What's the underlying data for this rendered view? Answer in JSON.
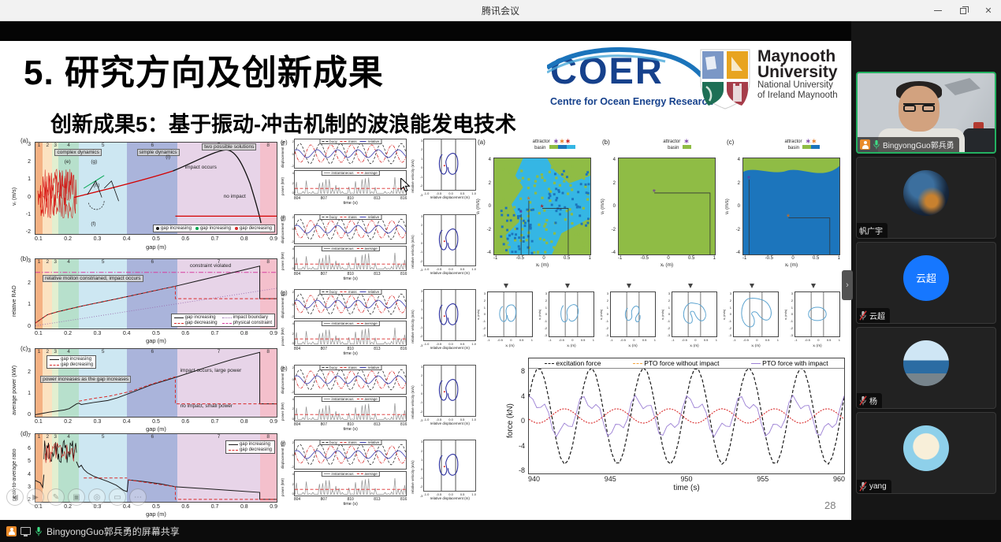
{
  "window": {
    "title": "腾讯会议"
  },
  "titlebar": {
    "close_glyph": "✕"
  },
  "slide": {
    "title": "5. 研究方向及创新成果",
    "subtitle": "创新成果5：基于振动-冲击机制的波浪能发电技术",
    "page_number": "28"
  },
  "logos": {
    "coer_text": "COER",
    "coer_tagline": "Centre for Ocean Energy Research",
    "mu_name1": "Maynooth",
    "mu_name2": "University",
    "mu_sub1": "National University",
    "mu_sub2": "of Ireland Maynooth"
  },
  "zones": {
    "items": [
      {
        "n": "1",
        "w": "3%",
        "c": "#f4b183"
      },
      {
        "n": "2",
        "w": "4%",
        "c": "#fbe2c1"
      },
      {
        "n": "3",
        "w": "2.5%",
        "c": "#e2efd0"
      },
      {
        "n": "4",
        "w": "8.5%",
        "c": "#b7e0cc"
      },
      {
        "n": "5",
        "w": "20%",
        "c": "#cde7f2"
      },
      {
        "n": "6",
        "w": "21%",
        "c": "#aab4db"
      },
      {
        "n": "7",
        "w": "34%",
        "c": "#e7d4e8"
      },
      {
        "n": "8",
        "w": "7%",
        "c": "#f4c0cc"
      }
    ]
  },
  "plot_a": {
    "label": "(a)",
    "ylabel": "vᵣ (m/s)",
    "yticks": [
      "3",
      "2",
      "1",
      "0",
      "-1",
      "-2"
    ],
    "xticks": [
      "0.1",
      "0.2",
      "0.3",
      "0.4",
      "0.5",
      "0.6",
      "0.7",
      "0.8",
      "0.9"
    ],
    "xlabel": "gap (m)",
    "box_complex": "complex dynamics",
    "box_simple": "simple dynamics",
    "box_two": "two possible solutions",
    "ann_e": "(e)",
    "ann_g": "(g)",
    "ann_h": "(h)",
    "ann_f": "(f)",
    "ann_i": "(i)",
    "ann_impact": "impact occurs",
    "ann_no_impact": "no impact",
    "legend": [
      {
        "label": "gap increasing",
        "style": "dot",
        "color": "#1a1a1a"
      },
      {
        "label": "gap increasing",
        "style": "dot",
        "color": "#00a650"
      },
      {
        "label": "gap decreasing",
        "style": "dot",
        "color": "#d92b2b"
      }
    ]
  },
  "plot_b": {
    "label": "(b)",
    "ylabel": "relative RAO",
    "yticks": [
      "3",
      "2",
      "1",
      "0"
    ],
    "xticks": [
      "0.1",
      "0.2",
      "0.3",
      "0.4",
      "0.5",
      "0.6",
      "0.7",
      "0.8",
      "0.9"
    ],
    "xlabel": "gap (m)",
    "ann_constraint": "constraint violated",
    "box_note": "relative moiton constrianed, impact occurs",
    "legend": [
      {
        "label": "gap increasing",
        "style": "solid",
        "color": "#1a1a1a"
      },
      {
        "label": "impact boundary",
        "style": "dotted",
        "color": "#9a6fb0"
      },
      {
        "label": "gap decreasing",
        "style": "dashed",
        "color": "#d92b2b"
      },
      {
        "label": "physical constraint",
        "style": "dashdot",
        "color": "#d63fa0"
      }
    ]
  },
  "plot_c": {
    "label": "(c)",
    "ylabel": "average power (kW)",
    "yticks": [
      "3",
      "2",
      "1",
      "0"
    ],
    "xticks": [
      "0.1",
      "0.2",
      "0.3",
      "0.4",
      "0.5",
      "0.6",
      "0.7",
      "0.8",
      "0.9"
    ],
    "xlabel": "gap (m)",
    "box_note": "power increases as the gap increases",
    "ann_large": "impact occurs, large power",
    "ann_small": "no impact, small power",
    "legend": [
      {
        "label": "gap increasing",
        "style": "solid",
        "color": "#1a1a1a"
      },
      {
        "label": "gap decreasing",
        "style": "dashed",
        "color": "#d92b2b"
      }
    ]
  },
  "plot_d": {
    "label": "(d)",
    "ylabel": "peak-to-average ratio",
    "yticks": [
      "7",
      "6",
      "5",
      "4",
      "3",
      "2"
    ],
    "xticks": [
      "0.1",
      "0.2",
      "0.3",
      "0.4",
      "0.5",
      "0.6",
      "0.7",
      "0.8",
      "0.9"
    ],
    "xlabel": "gap (m)",
    "legend": [
      {
        "label": "gap increasing",
        "style": "solid",
        "color": "#1a1a1a"
      },
      {
        "label": "gap decreasing",
        "style": "dashed",
        "color": "#d92b2b"
      }
    ]
  },
  "mid": {
    "rows": [
      {
        "label": "(e)"
      },
      {
        "label": "(f)"
      },
      {
        "label": "(g)"
      },
      {
        "label": "(h)"
      },
      {
        "label": "(i)"
      }
    ],
    "ylabel_top": "displacement (m)",
    "ylabel_bottom": "power (kW)",
    "disp_yticks": [
      "2",
      "0",
      "-2"
    ],
    "pow_yticks": [
      "4",
      "2",
      "0"
    ],
    "disp_legend": [
      {
        "label": "buoy",
        "style": "dashed",
        "color": "#333333"
      },
      {
        "label": "mass",
        "style": "dashdot",
        "color": "#d92b2b"
      },
      {
        "label": "relative",
        "style": "solid",
        "color": "#3b3bb0"
      }
    ],
    "pow_legend": [
      {
        "label": "instantaneous",
        "style": "solid",
        "color": "#888888"
      },
      {
        "label": "average",
        "style": "dashed",
        "color": "#d92b2b"
      }
    ],
    "xticks": [
      "804",
      "807",
      "810",
      "813",
      "816"
    ],
    "xlabel": "time (s)",
    "phase_ylabel": "relative velocity (m/s)",
    "phase_yticks": [
      "3",
      "2",
      "1",
      "0",
      "-1",
      "-2",
      "-3"
    ],
    "phase_xticks": [
      "-1.0",
      "-0.5",
      "0.0",
      "0.5",
      "1.0"
    ],
    "phase_xlabel": "relative displacement (m)"
  },
  "basins": {
    "star_glyph": "∗",
    "attractor_word": "attractor",
    "basin_word": "basin",
    "ylabel": "vᵣ (m/s)",
    "yticks": [
      "4",
      "2",
      "0",
      "-2",
      "-4"
    ],
    "xticks": [
      "-1",
      "-0.5",
      "0",
      "0.5",
      "1"
    ],
    "xlabel": "xᵣ (m)",
    "plots": [
      {
        "label": "(a)",
        "stars": [
          "#7030a0",
          "#e36c0a",
          "#c00000"
        ],
        "chips": [
          "#8fbc45",
          "#1c75bc",
          "#35b6e4"
        ]
      },
      {
        "label": "(b)",
        "stars": [
          "#7030a0"
        ],
        "chips": [
          "#8fbc45"
        ]
      },
      {
        "label": "(c)",
        "stars": [
          "#7030a0",
          "#e36c0a"
        ],
        "chips": [
          "#8fbc45",
          "#1c75bc"
        ]
      }
    ]
  },
  "sports": {
    "ylabel": "vᵣ (m/s)",
    "yticks": [
      "3",
      "2",
      "1",
      "0",
      "-1",
      "-2",
      "-3"
    ],
    "xticks": [
      "-1",
      "-0.5",
      "0",
      "0.5",
      "1"
    ],
    "xlabel": "xᵣ (m)",
    "items": [
      {},
      {},
      {},
      {},
      {},
      {}
    ]
  },
  "force": {
    "legend": [
      {
        "label": "excitation force",
        "style": "dashed",
        "color": "#1a1a1a"
      },
      {
        "label": "PTO force without impact",
        "style": "dashdot",
        "color": "#f4a23c"
      },
      {
        "label": "PTO force with impact",
        "style": "solid",
        "color": "#9b7fd4"
      }
    ],
    "ylabel": "force (kN)",
    "yticks": [
      "8",
      "4",
      "0",
      "-4",
      "-8"
    ],
    "xticks": [
      "940",
      "945",
      "950",
      "955",
      "960"
    ],
    "xlabel": "time (s)"
  },
  "toolbar": {
    "buttons": [
      {
        "name": "prev",
        "glyph": "◀"
      },
      {
        "name": "next",
        "glyph": "▶"
      },
      {
        "name": "pen",
        "glyph": "✎"
      },
      {
        "name": "slides",
        "glyph": "▣"
      },
      {
        "name": "magnifier",
        "glyph": "◎"
      },
      {
        "name": "display",
        "glyph": "▭"
      },
      {
        "name": "more",
        "glyph": "⋯"
      }
    ]
  },
  "sidebar": {
    "participants": [
      {
        "name": "BingyongGuo郭兵勇"
      },
      {
        "name": "帆广宇"
      },
      {
        "name": "云超",
        "avatar_text": "云超"
      },
      {
        "name": "杨"
      },
      {
        "name": "yang"
      }
    ]
  },
  "bottombar": {
    "label": "BingyongGuo郭兵勇的屏幕共享"
  }
}
